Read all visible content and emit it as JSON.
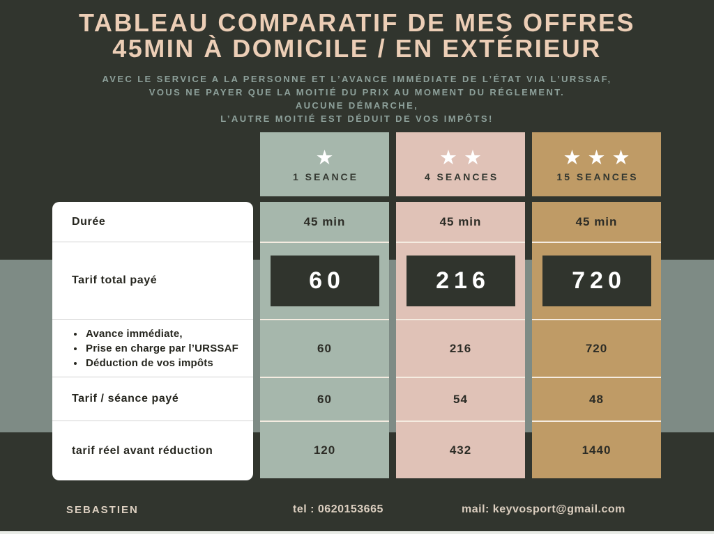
{
  "page": {
    "background_color": "#31352e",
    "band_color": "#7e8b85",
    "bottom_strip_color": "#e9ece7"
  },
  "title": {
    "line1": "TABLEAU COMPARATIF DE MES OFFRES",
    "line2": "45MIN À DOMICILE / EN EXTÉRIEUR",
    "color": "#ecceb6"
  },
  "subtitle": {
    "color": "#8da09a",
    "lines": [
      "AVEC LE SERVICE A LA PERSONNE ET L’AVANCE IMMÉDIATE DE L’ÉTAT VIA L’URSSAF,",
      "VOUS NE PAYER QUE LA MOITIÉ DU PRIX AU MOMENT DU RÉGLEMENT.",
      "AUCUNE DÉMARCHE,",
      "L’AUTRE MOITIÉ EST DÉDUIT DE VOS IMPÔTS!"
    ]
  },
  "table": {
    "row_labels": {
      "duration": "Durée",
      "total": "Tarif total payé",
      "advance_bullets": [
        "Avance immédiate,",
        "Prise en charge par l’URSSAF",
        "Déduction de vos impôts"
      ],
      "per_session": "Tarif / séance payé",
      "before_reduction": "tarif réel avant réduction"
    },
    "price_box_color": "#30342d",
    "price_text_color": "#ffffff",
    "columns": [
      {
        "stars": "★",
        "stars_count": 1,
        "label": "1 SEANCE",
        "color": "#a6b7ac",
        "duration": "45 min",
        "total": "60",
        "advance": "60",
        "per_session": "60",
        "before_reduction": "120"
      },
      {
        "stars": "★★",
        "stars_count": 2,
        "label": "4 SEANCES",
        "color": "#e0c2b7",
        "duration": "45 min",
        "total": "216",
        "advance": "216",
        "per_session": "54",
        "before_reduction": "432"
      },
      {
        "stars": "★★★",
        "stars_count": 3,
        "label": "15 SEANCES",
        "color": "#bf9b66",
        "duration": "45 min",
        "total": "720",
        "advance": "720",
        "per_session": "48",
        "before_reduction": "1440"
      }
    ]
  },
  "footer": {
    "name": "SEBASTIEN",
    "tel": "tel : 0620153665",
    "mail": "mail: keyvosport@gmail.com",
    "color": "#dccfc0"
  }
}
